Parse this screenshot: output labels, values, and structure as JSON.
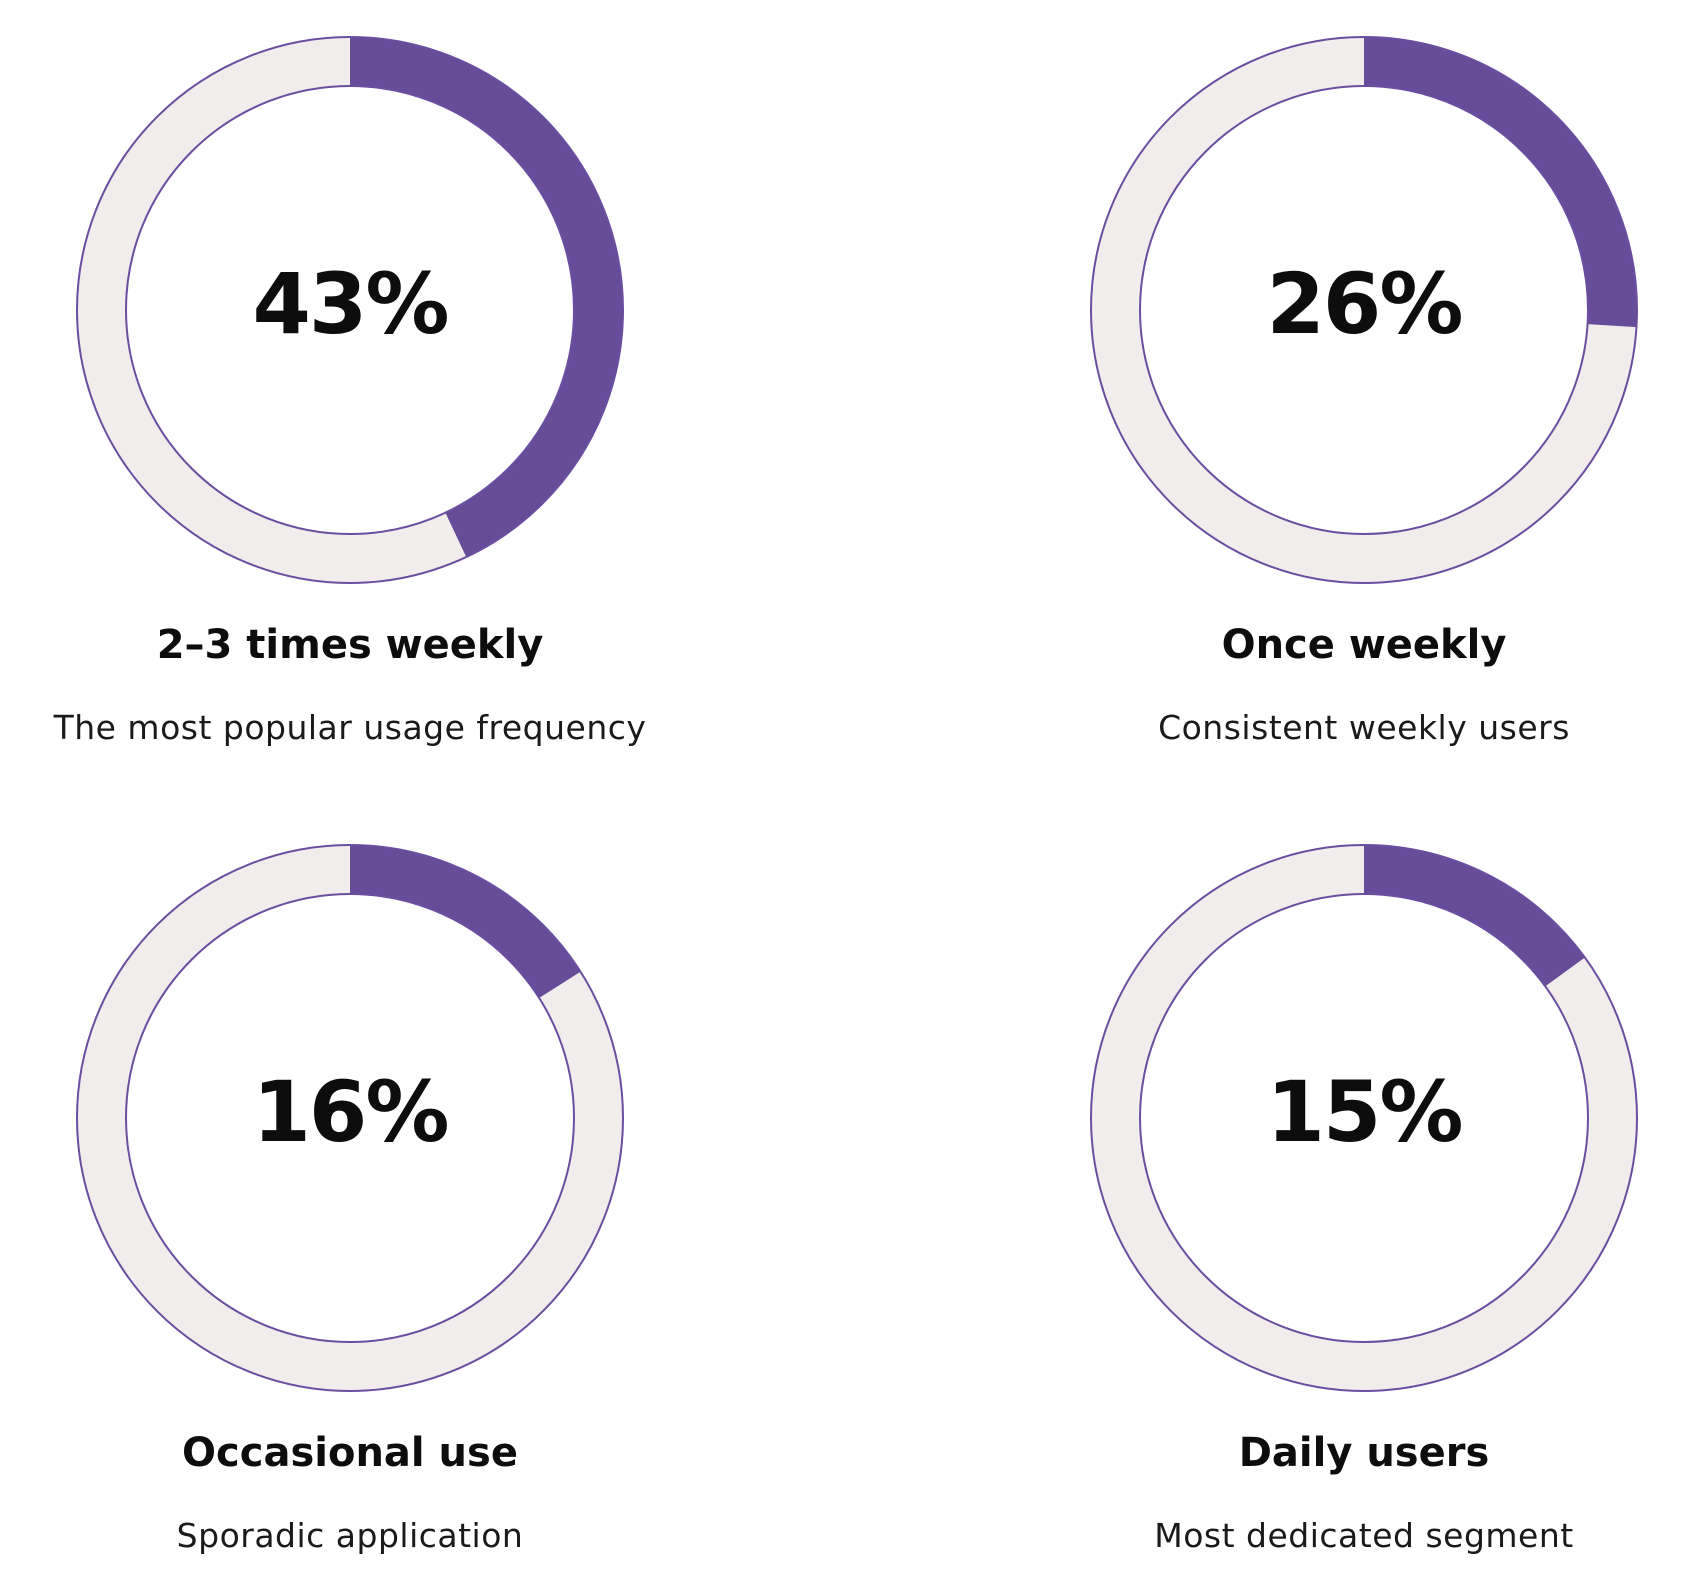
{
  "colors": {
    "accent": "#674c99",
    "track": "#f1eded",
    "outline": "#6a4fa0",
    "text": "#0d0d0d"
  },
  "chart_data": [
    {
      "type": "pie",
      "values": [
        43,
        57
      ],
      "value_label": "43%",
      "label": "2–3 times weekly",
      "description": "The most popular usage frequency"
    },
    {
      "type": "pie",
      "values": [
        26,
        74
      ],
      "value_label": "26%",
      "label": "Once weekly",
      "description": "Consistent weekly users"
    },
    {
      "type": "pie",
      "values": [
        16,
        84
      ],
      "value_label": "16%",
      "label": "Occasional use",
      "description": "Sporadic application"
    },
    {
      "type": "pie",
      "values": [
        15,
        85
      ],
      "value_label": "15%",
      "label": "Daily users",
      "description": "Most dedicated segment"
    }
  ]
}
